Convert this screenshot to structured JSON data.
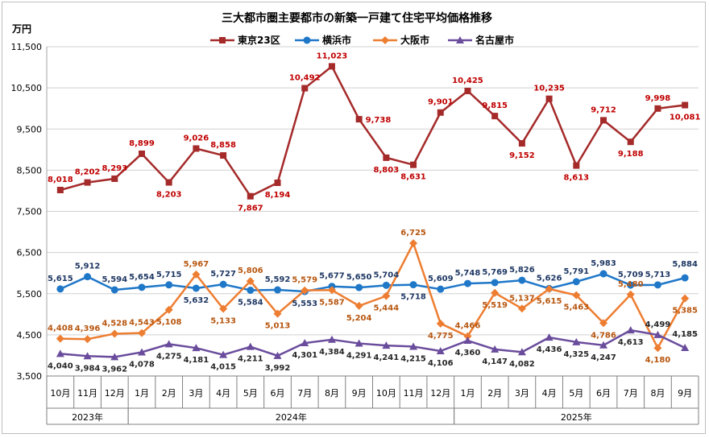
{
  "chart_data": {
    "type": "line",
    "title": "三大都市圏主要都市の新築一戸建て住宅平均価格推移",
    "ylabel": "万円",
    "xlabel": "",
    "ylim": [
      3500,
      11500
    ],
    "yticks": [
      3500,
      4500,
      5500,
      6500,
      7500,
      8500,
      9500,
      10500,
      11500
    ],
    "ytick_labels": [
      "3,500",
      "4,500",
      "5,500",
      "6,500",
      "7,500",
      "8,500",
      "9,500",
      "10,500",
      "11,500"
    ],
    "grid": true,
    "legend_position": "top-center",
    "categories": [
      "10月",
      "11月",
      "12月",
      "1月",
      "2月",
      "3月",
      "4月",
      "5月",
      "6月",
      "7月",
      "8月",
      "9月",
      "10月",
      "11月",
      "12月",
      "1月",
      "2月",
      "3月",
      "4月",
      "5月",
      "6月",
      "7月",
      "8月",
      "9月"
    ],
    "year_groups": [
      {
        "label": "2023年",
        "start": 0,
        "end": 2
      },
      {
        "label": "2024年",
        "start": 3,
        "end": 14
      },
      {
        "label": "2025年",
        "start": 15,
        "end": 23
      }
    ],
    "series": [
      {
        "name": "東京23区",
        "color": "#A52A2A",
        "marker": "square",
        "label_color": "#C00000",
        "values": [
          8018,
          8202,
          8293,
          8899,
          8203,
          9026,
          8858,
          7867,
          8194,
          10492,
          11023,
          9738,
          8803,
          8631,
          9901,
          10425,
          9815,
          9152,
          10235,
          8613,
          9712,
          9188,
          9998,
          10081
        ],
        "labels": [
          "8,018",
          "8,202",
          "8,293",
          "8,899",
          "8,203",
          "9,026",
          "8,858",
          "7,867",
          "8,194",
          "10,492",
          "11,023",
          "9,738",
          "8,803",
          "8,631",
          "9,901",
          "10,425",
          "9,815",
          "9,152",
          "10,235",
          "8,613",
          "9,712",
          "9,188",
          "9,998",
          "10,081"
        ],
        "label_pos": [
          "above",
          "above",
          "above",
          "above",
          "below",
          "above",
          "above",
          "below",
          "below",
          "above",
          "above",
          "right",
          "below",
          "below",
          "above",
          "above",
          "above",
          "below",
          "above",
          "below",
          "above",
          "below",
          "above",
          "below"
        ]
      },
      {
        "name": "横浜市",
        "color": "#1F77C8",
        "marker": "circle",
        "label_color": "#1F3864",
        "values": [
          5615,
          5912,
          5594,
          5654,
          5715,
          5632,
          5727,
          5584,
          5592,
          5553,
          5677,
          5650,
          5704,
          5718,
          5609,
          5748,
          5769,
          5826,
          5626,
          5791,
          5983,
          5709,
          5713,
          5884
        ],
        "labels": [
          "5,615",
          "5,912",
          "5,594",
          "5,654",
          "5,715",
          "5,632",
          "5,727",
          "5,584",
          "5,592",
          "5,553",
          "5,677",
          "5,650",
          "5,704",
          "5,718",
          "5,609",
          "5,748",
          "5,769",
          "5,826",
          "5,626",
          "5,791",
          "5,983",
          "5,709",
          "5,713",
          "5,884"
        ],
        "label_pos": [
          "above",
          "above",
          "above",
          "above",
          "above",
          "below",
          "above",
          "below",
          "above",
          "below",
          "above",
          "above",
          "above",
          "below",
          "above",
          "above",
          "above",
          "above",
          "above",
          "above",
          "above",
          "above",
          "above",
          "above"
        ]
      },
      {
        "name": "大阪市",
        "color": "#ED7D31",
        "marker": "diamond",
        "label_color": "#B7560F",
        "values": [
          4408,
          4396,
          4528,
          4543,
          5108,
          5967,
          5133,
          5806,
          5013,
          5579,
          5587,
          5204,
          5444,
          6725,
          4775,
          4466,
          5519,
          5137,
          5615,
          5463,
          4786,
          5480,
          4180,
          5385
        ],
        "labels": [
          "4,408",
          "4,396",
          "4,528",
          "4,543",
          "5,108",
          "5,967",
          "5,133",
          "5,806",
          "5,013",
          "5,579",
          "5,587",
          "5,204",
          "5,444",
          "6,725",
          "4,775",
          "4,466",
          "5,519",
          "5,137",
          "5,615",
          "5,463",
          "4,786",
          "5,480",
          "4,180",
          "5,385"
        ],
        "label_pos": [
          "above",
          "above",
          "above",
          "above",
          "below",
          "above",
          "below",
          "above",
          "below",
          "above",
          "below",
          "below",
          "below",
          "above",
          "below",
          "above",
          "below",
          "above",
          "below",
          "below",
          "below",
          "above",
          "below",
          "below"
        ]
      },
      {
        "name": "名古屋市",
        "color": "#6A4C9C",
        "marker": "triangle",
        "label_color": "#262626",
        "values": [
          4040,
          3984,
          3962,
          4078,
          4275,
          4181,
          4015,
          4211,
          3992,
          4301,
          4384,
          4291,
          4241,
          4215,
          4106,
          4360,
          4147,
          4082,
          4436,
          4325,
          4247,
          4613,
          4499,
          4185
        ],
        "labels": [
          "4,040",
          "3,984",
          "3,962",
          "4,078",
          "4,275",
          "4,181",
          "4,015",
          "4,211",
          "3,992",
          "4,301",
          "4,384",
          "4,291",
          "4,241",
          "4,215",
          "4,106",
          "4,360",
          "4,147",
          "4,082",
          "4,436",
          "4,325",
          "4,247",
          "4,613",
          "4,499",
          "4,185"
        ],
        "label_pos": [
          "below",
          "below",
          "below",
          "below",
          "below",
          "below",
          "below",
          "below",
          "below",
          "below",
          "below",
          "below",
          "below",
          "below",
          "below",
          "below",
          "below",
          "below",
          "below",
          "below",
          "below",
          "below",
          "above",
          "above"
        ]
      }
    ]
  }
}
